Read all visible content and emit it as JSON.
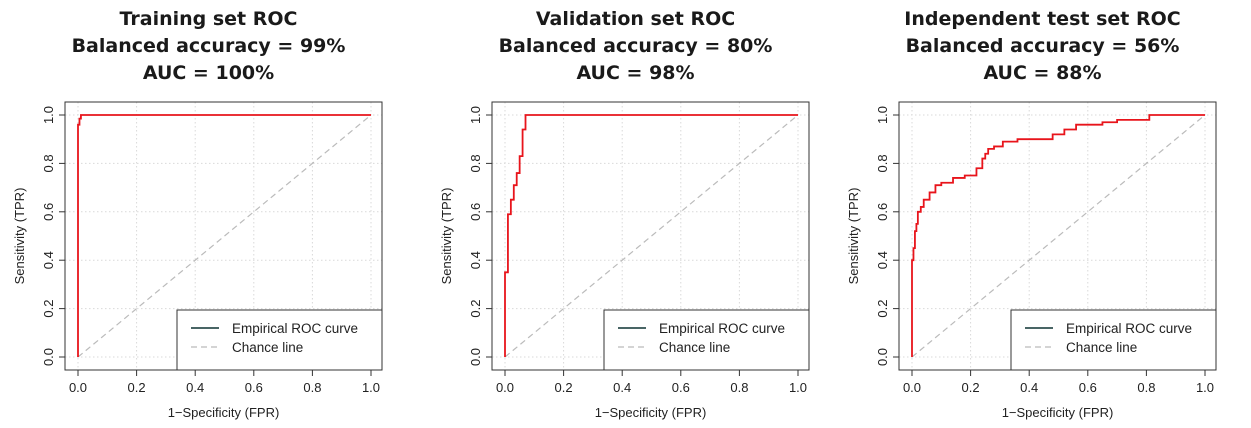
{
  "chart_data": [
    {
      "type": "line",
      "title_lines": [
        "Training set ROC",
        "Balanced accuracy = 99%",
        "AUC = 100%"
      ],
      "xlabel": "1−Specificity (FPR)",
      "ylabel": "Sensitivity (TPR)",
      "xlim": [
        0,
        1
      ],
      "ylim": [
        0,
        1
      ],
      "xticks": [
        "0.0",
        "0.2",
        "0.4",
        "0.6",
        "0.8",
        "1.0"
      ],
      "yticks": [
        "0.0",
        "0.2",
        "0.4",
        "0.6",
        "0.8",
        "1.0"
      ],
      "grid": true,
      "legend_position": "bottom-right",
      "series": [
        {
          "name": "Empirical ROC curve",
          "color": "#e8141b",
          "style": "solid",
          "x": [
            0,
            0,
            0.005,
            0.005,
            0.01,
            0.01,
            1.0
          ],
          "y": [
            0,
            0.96,
            0.96,
            0.985,
            0.985,
            1.0,
            1.0
          ]
        },
        {
          "name": "Chance line",
          "color": "#bbbbbb",
          "style": "dashed",
          "x": [
            0,
            1
          ],
          "y": [
            0,
            1
          ]
        }
      ]
    },
    {
      "type": "line",
      "title_lines": [
        "Validation set ROC",
        "Balanced accuracy = 80%",
        "AUC = 98%"
      ],
      "xlabel": "1−Specificity (FPR)",
      "ylabel": "Sensitivity (TPR)",
      "xlim": [
        0,
        1
      ],
      "ylim": [
        0,
        1
      ],
      "xticks": [
        "0.0",
        "0.2",
        "0.4",
        "0.6",
        "0.8",
        "1.0"
      ],
      "yticks": [
        "0.0",
        "0.2",
        "0.4",
        "0.6",
        "0.8",
        "1.0"
      ],
      "grid": true,
      "legend_position": "bottom-right",
      "series": [
        {
          "name": "Empirical ROC curve",
          "color": "#e8141b",
          "style": "solid",
          "x": [
            0,
            0,
            0.01,
            0.01,
            0.02,
            0.02,
            0.03,
            0.03,
            0.04,
            0.04,
            0.05,
            0.05,
            0.06,
            0.06,
            0.07,
            0.07,
            1.0
          ],
          "y": [
            0,
            0.35,
            0.35,
            0.59,
            0.59,
            0.65,
            0.65,
            0.71,
            0.71,
            0.76,
            0.76,
            0.83,
            0.83,
            0.94,
            0.94,
            1.0,
            1.0
          ]
        },
        {
          "name": "Chance line",
          "color": "#bbbbbb",
          "style": "dashed",
          "x": [
            0,
            1
          ],
          "y": [
            0,
            1
          ]
        }
      ]
    },
    {
      "type": "line",
      "title_lines": [
        "Independent test set ROC",
        "Balanced accuracy = 56%",
        "AUC = 88%"
      ],
      "xlabel": "1−Specificity (FPR)",
      "ylabel": "Sensitivity (TPR)",
      "xlim": [
        0,
        1
      ],
      "ylim": [
        0,
        1
      ],
      "xticks": [
        "0.0",
        "0.2",
        "0.4",
        "0.6",
        "0.8",
        "1.0"
      ],
      "yticks": [
        "0.0",
        "0.2",
        "0.4",
        "0.6",
        "0.8",
        "1.0"
      ],
      "grid": true,
      "legend_position": "bottom-right",
      "series": [
        {
          "name": "Empirical ROC curve",
          "color": "#e8141b",
          "style": "solid",
          "x": [
            0,
            0,
            0.005,
            0.005,
            0.01,
            0.01,
            0.015,
            0.015,
            0.02,
            0.02,
            0.03,
            0.03,
            0.04,
            0.04,
            0.06,
            0.06,
            0.08,
            0.08,
            0.1,
            0.1,
            0.14,
            0.14,
            0.18,
            0.18,
            0.22,
            0.22,
            0.24,
            0.24,
            0.25,
            0.25,
            0.26,
            0.26,
            0.28,
            0.28,
            0.31,
            0.31,
            0.36,
            0.36,
            0.48,
            0.48,
            0.52,
            0.52,
            0.56,
            0.56,
            0.65,
            0.65,
            0.7,
            0.7,
            0.81,
            0.81,
            1.0
          ],
          "y": [
            0,
            0.4,
            0.4,
            0.45,
            0.45,
            0.52,
            0.52,
            0.55,
            0.55,
            0.6,
            0.6,
            0.62,
            0.62,
            0.65,
            0.65,
            0.68,
            0.68,
            0.71,
            0.71,
            0.72,
            0.72,
            0.74,
            0.74,
            0.75,
            0.75,
            0.78,
            0.78,
            0.82,
            0.82,
            0.84,
            0.84,
            0.86,
            0.86,
            0.87,
            0.87,
            0.89,
            0.89,
            0.9,
            0.9,
            0.92,
            0.92,
            0.94,
            0.94,
            0.96,
            0.96,
            0.97,
            0.97,
            0.98,
            0.98,
            1.0,
            1.0
          ]
        },
        {
          "name": "Chance line",
          "color": "#bbbbbb",
          "style": "dashed",
          "x": [
            0,
            1
          ],
          "y": [
            0,
            1
          ]
        }
      ]
    }
  ]
}
